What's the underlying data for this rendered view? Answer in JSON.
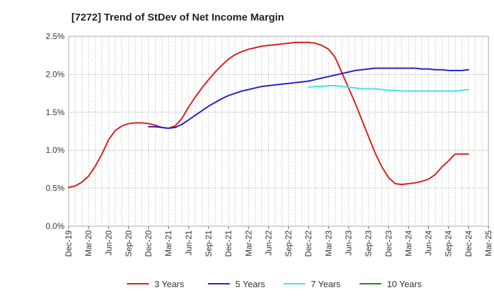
{
  "chart_data": {
    "type": "line",
    "title": "[7272]  Trend of StDev of Net Income Margin",
    "xlabel": "",
    "ylabel": "",
    "x_range": [
      "2019-12",
      "2025-03"
    ],
    "ylim": [
      0,
      2.5
    ],
    "y_ticks": [
      0,
      0.5,
      1.0,
      1.5,
      2.0,
      2.5
    ],
    "y_tick_labels": [
      "0.0%",
      "0.5%",
      "1.0%",
      "1.5%",
      "2.0%",
      "2.5%"
    ],
    "x_ticks": [
      "2019-12",
      "2020-03",
      "2020-06",
      "2020-09",
      "2020-12",
      "2021-03",
      "2021-06",
      "2021-09",
      "2021-12",
      "2022-03",
      "2022-06",
      "2022-09",
      "2022-12",
      "2023-03",
      "2023-06",
      "2023-09",
      "2023-12",
      "2024-03",
      "2024-06",
      "2024-09",
      "2024-12",
      "2025-03"
    ],
    "x_tick_labels": [
      "Dec-19",
      "Mar-20",
      "Jun-20",
      "Sep-20",
      "Dec-20",
      "Mar-21",
      "Jun-21",
      "Sep-21",
      "Dec-21",
      "Mar-22",
      "Jun-22",
      "Sep-22",
      "Dec-22",
      "Mar-23",
      "Jun-23",
      "Sep-23",
      "Dec-23",
      "Mar-24",
      "Jun-24",
      "Sep-24",
      "Dec-24",
      "Mar-25"
    ],
    "grid": true,
    "legend_position": "bottom",
    "series": [
      {
        "name": "3 Years",
        "color": "#dd1c1c",
        "x": [
          "2019-12",
          "2020-01",
          "2020-02",
          "2020-03",
          "2020-04",
          "2020-05",
          "2020-06",
          "2020-07",
          "2020-08",
          "2020-09",
          "2020-10",
          "2020-11",
          "2020-12",
          "2021-01",
          "2021-02",
          "2021-03",
          "2021-04",
          "2021-05",
          "2021-06",
          "2021-07",
          "2021-08",
          "2021-09",
          "2021-10",
          "2021-11",
          "2021-12",
          "2022-01",
          "2022-02",
          "2022-03",
          "2022-04",
          "2022-05",
          "2022-06",
          "2022-07",
          "2022-08",
          "2022-09",
          "2022-10",
          "2022-11",
          "2022-12",
          "2023-01",
          "2023-02",
          "2023-03",
          "2023-04",
          "2023-05",
          "2023-06",
          "2023-07",
          "2023-08",
          "2023-09",
          "2023-10",
          "2023-11",
          "2023-12",
          "2024-01",
          "2024-02",
          "2024-03",
          "2024-04",
          "2024-05",
          "2024-06",
          "2024-07",
          "2024-08",
          "2024-09",
          "2024-10",
          "2024-11",
          "2024-12"
        ],
        "values": [
          0.51,
          0.53,
          0.58,
          0.66,
          0.79,
          0.95,
          1.14,
          1.26,
          1.32,
          1.35,
          1.36,
          1.36,
          1.35,
          1.33,
          1.3,
          1.29,
          1.32,
          1.42,
          1.57,
          1.7,
          1.82,
          1.93,
          2.03,
          2.12,
          2.2,
          2.26,
          2.3,
          2.33,
          2.35,
          2.37,
          2.38,
          2.39,
          2.4,
          2.41,
          2.42,
          2.42,
          2.42,
          2.41,
          2.38,
          2.33,
          2.22,
          2.02,
          1.82,
          1.62,
          1.4,
          1.18,
          0.96,
          0.78,
          0.64,
          0.56,
          0.55,
          0.56,
          0.57,
          0.59,
          0.62,
          0.68,
          0.78,
          0.86,
          0.95,
          0.95,
          0.95
        ]
      },
      {
        "name": "5 Years",
        "color": "#1f1fc8",
        "x": [
          "2020-12",
          "2021-01",
          "2021-02",
          "2021-03",
          "2021-04",
          "2021-05",
          "2021-06",
          "2021-07",
          "2021-08",
          "2021-09",
          "2021-10",
          "2021-11",
          "2021-12",
          "2022-01",
          "2022-02",
          "2022-03",
          "2022-04",
          "2022-05",
          "2022-06",
          "2022-07",
          "2022-08",
          "2022-09",
          "2022-10",
          "2022-11",
          "2022-12",
          "2023-01",
          "2023-02",
          "2023-03",
          "2023-04",
          "2023-05",
          "2023-06",
          "2023-07",
          "2023-08",
          "2023-09",
          "2023-10",
          "2023-11",
          "2023-12",
          "2024-01",
          "2024-02",
          "2024-03",
          "2024-04",
          "2024-05",
          "2024-06",
          "2024-07",
          "2024-08",
          "2024-09",
          "2024-10",
          "2024-11",
          "2024-12"
        ],
        "values": [
          1.31,
          1.31,
          1.3,
          1.29,
          1.3,
          1.34,
          1.4,
          1.46,
          1.52,
          1.58,
          1.63,
          1.68,
          1.72,
          1.75,
          1.78,
          1.8,
          1.82,
          1.84,
          1.85,
          1.86,
          1.87,
          1.88,
          1.89,
          1.9,
          1.91,
          1.93,
          1.95,
          1.97,
          1.99,
          2.01,
          2.03,
          2.05,
          2.06,
          2.07,
          2.08,
          2.08,
          2.08,
          2.08,
          2.08,
          2.08,
          2.08,
          2.07,
          2.07,
          2.06,
          2.06,
          2.05,
          2.05,
          2.05,
          2.06
        ]
      },
      {
        "name": "7 Years",
        "color": "#3ce6e6",
        "x": [
          "2022-12",
          "2023-01",
          "2023-02",
          "2023-03",
          "2023-04",
          "2023-05",
          "2023-06",
          "2023-07",
          "2023-08",
          "2023-09",
          "2023-10",
          "2023-11",
          "2023-12",
          "2024-01",
          "2024-02",
          "2024-03",
          "2024-04",
          "2024-05",
          "2024-06",
          "2024-07",
          "2024-08",
          "2024-09",
          "2024-10",
          "2024-11",
          "2024-12"
        ],
        "values": [
          1.83,
          1.84,
          1.84,
          1.85,
          1.85,
          1.84,
          1.83,
          1.82,
          1.81,
          1.81,
          1.81,
          1.8,
          1.79,
          1.79,
          1.78,
          1.78,
          1.78,
          1.78,
          1.78,
          1.78,
          1.78,
          1.78,
          1.78,
          1.79,
          1.8
        ]
      },
      {
        "name": "10 Years",
        "color": "#1a8a1a",
        "x": [],
        "values": []
      }
    ]
  }
}
